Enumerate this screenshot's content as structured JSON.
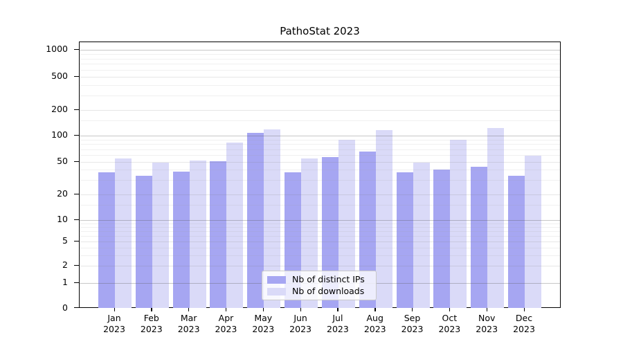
{
  "title": "PathoStat 2023",
  "colors": {
    "ips_bar": "#a6a6f2",
    "downloads_bar": "#dadaf8",
    "axis": "#000000"
  },
  "y_axis": {
    "tick_labels": [
      "0",
      "1",
      "2",
      "5",
      "10",
      "20",
      "50",
      "100",
      "200",
      "500",
      "1000"
    ]
  },
  "x_axis": {
    "months": [
      "Jan",
      "Feb",
      "Mar",
      "Apr",
      "May",
      "Jun",
      "Jul",
      "Aug",
      "Sep",
      "Oct",
      "Nov",
      "Dec"
    ],
    "year_label": "2023"
  },
  "legend": {
    "items": [
      {
        "label": "Nb of distinct IPs",
        "color": "#a6a6f2"
      },
      {
        "label": "Nb of downloads",
        "color": "#dadaf8"
      }
    ]
  },
  "chart_data": {
    "type": "bar",
    "title": "PathoStat 2023",
    "categories": [
      "Jan 2023",
      "Feb 2023",
      "Mar 2023",
      "Apr 2023",
      "May 2023",
      "Jun 2023",
      "Jul 2023",
      "Aug 2023",
      "Sep 2023",
      "Oct 2023",
      "Nov 2023",
      "Dec 2023"
    ],
    "series": [
      {
        "name": "Nb of distinct IPs",
        "values": [
          37,
          34,
          38,
          51,
          107,
          37,
          57,
          66,
          37,
          40,
          44,
          34
        ]
      },
      {
        "name": "Nb of downloads",
        "values": [
          55,
          49,
          52,
          83,
          119,
          55,
          90,
          116,
          49,
          90,
          122,
          59
        ]
      }
    ],
    "xlabel": "",
    "ylabel": "",
    "yscale": "symlog",
    "yticks": [
      0,
      1,
      2,
      5,
      10,
      20,
      50,
      100,
      200,
      500,
      1000
    ],
    "ylim": [
      0,
      1400
    ],
    "grid": true,
    "legend_position": "lower center"
  }
}
